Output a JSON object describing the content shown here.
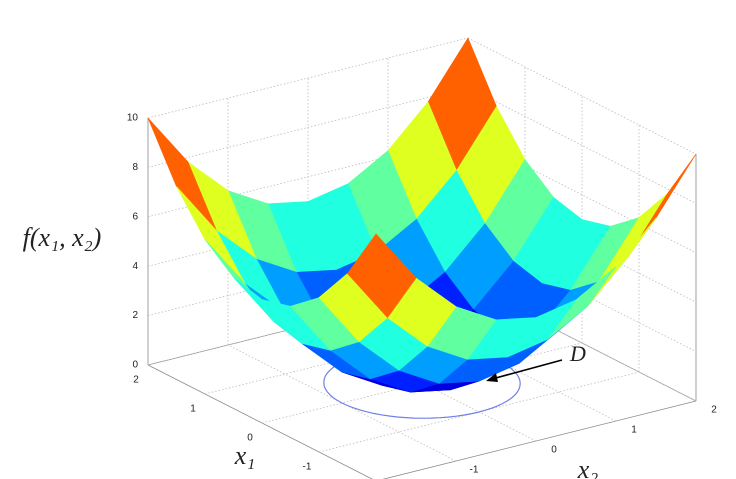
{
  "chart_data": {
    "type": "surface",
    "colormap": "jet",
    "grid": true,
    "x1": [
      -2,
      -1.5,
      -1,
      -0.5,
      0,
      0.5,
      1,
      1.5,
      2
    ],
    "x2": [
      -2,
      -1.5,
      -1,
      -0.5,
      0,
      0.5,
      1,
      1.5,
      2
    ],
    "z": [
      [
        10,
        7.8125,
        6.25,
        5.3125,
        5,
        5.3125,
        6.25,
        7.8125,
        10
      ],
      [
        7.8125,
        5.625,
        4.0625,
        3.125,
        2.8125,
        3.125,
        4.0625,
        5.625,
        7.8125
      ],
      [
        6.25,
        4.0625,
        2.5,
        1.5625,
        1.25,
        1.5625,
        2.5,
        4.0625,
        6.25
      ],
      [
        5.3125,
        3.125,
        1.5625,
        0.625,
        0.3125,
        0.625,
        1.5625,
        3.125,
        5.3125
      ],
      [
        5,
        2.8125,
        1.25,
        0.3125,
        0,
        0.3125,
        1.25,
        2.8125,
        5
      ],
      [
        5.3125,
        3.125,
        1.5625,
        0.625,
        0.3125,
        0.625,
        1.5625,
        3.125,
        5.3125
      ],
      [
        6.25,
        4.0625,
        2.5,
        1.5625,
        1.25,
        1.5625,
        2.5,
        4.0625,
        6.25
      ],
      [
        7.8125,
        5.625,
        4.0625,
        3.125,
        2.8125,
        3.125,
        4.0625,
        5.625,
        7.8125
      ],
      [
        10,
        7.8125,
        6.25,
        5.3125,
        5,
        5.3125,
        6.25,
        7.8125,
        10
      ]
    ],
    "xlim": [
      -2,
      2
    ],
    "ylim": [
      -2,
      2
    ],
    "zlim": [
      0,
      10
    ],
    "xticks": [
      -1,
      0,
      1,
      2
    ],
    "yticks": [
      -1,
      0,
      1,
      2
    ],
    "zticks": [
      0,
      2,
      4,
      6,
      8,
      10
    ],
    "xlabel": "x₁",
    "ylabel": "x₂",
    "zlabel": "f(x₁, x₂)",
    "region": {
      "label": "D",
      "radius": 1,
      "color": "#7080e8"
    }
  }
}
